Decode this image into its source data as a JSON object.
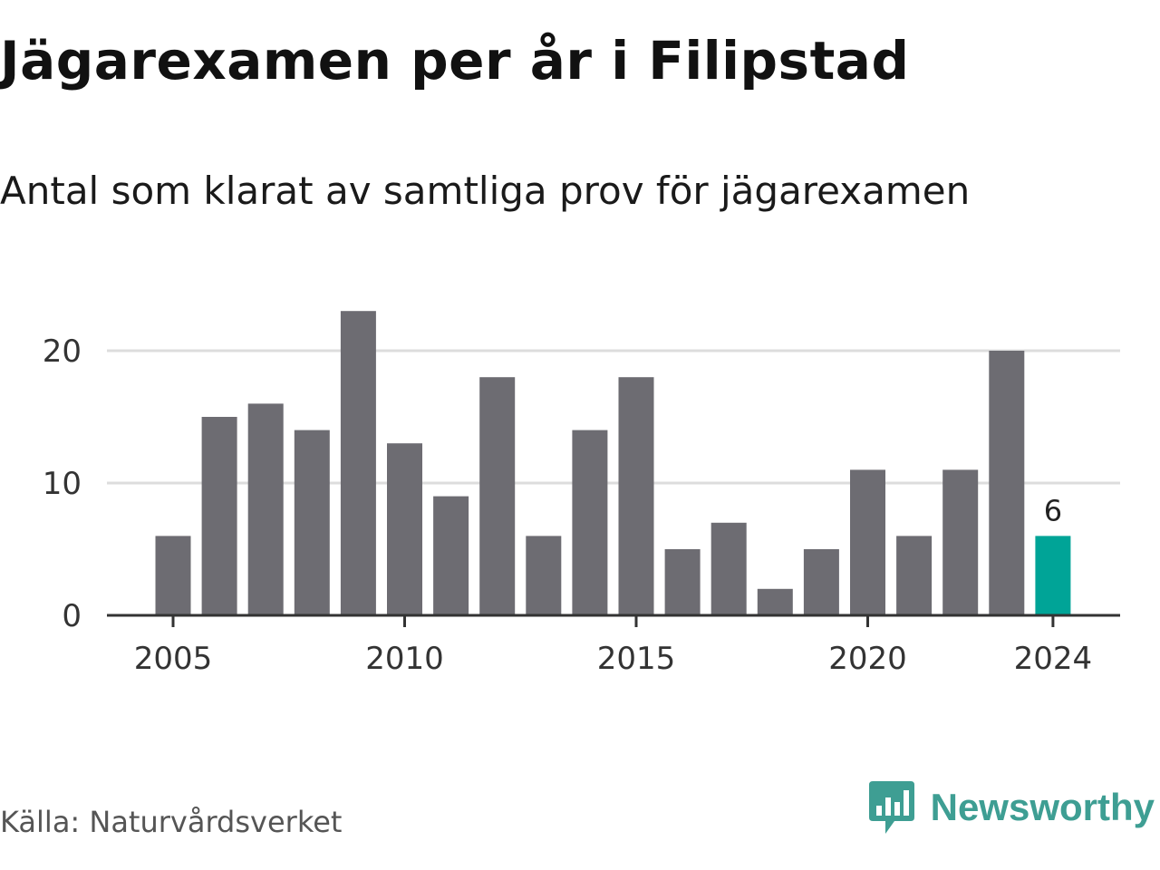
{
  "header": {
    "title": "Jägarexamen per år i Filipstad",
    "subtitle": "Antal som klarat av samtliga prov för jägarexamen"
  },
  "footer": {
    "source": "Källa: Naturvårdsverket",
    "brand": "Newsworthy",
    "brand_icon": "newsworthy-logo-icon"
  },
  "colors": {
    "bar": "#6d6c72",
    "highlight": "#00a497",
    "grid": "#dddddd",
    "axis": "#333333",
    "brand": "#3e9e93"
  },
  "chart_data": {
    "type": "bar",
    "title": "Jägarexamen per år i Filipstad",
    "subtitle": "Antal som klarat av samtliga prov för jägarexamen",
    "categories": [
      2005,
      2006,
      2007,
      2008,
      2009,
      2010,
      2011,
      2012,
      2013,
      2014,
      2015,
      2016,
      2017,
      2018,
      2019,
      2020,
      2021,
      2022,
      2023,
      2024
    ],
    "values": [
      6,
      15,
      16,
      14,
      23,
      13,
      9,
      18,
      6,
      14,
      18,
      5,
      7,
      2,
      5,
      11,
      6,
      11,
      20,
      6
    ],
    "x_ticks": [
      "2005",
      "2010",
      "2015",
      "2020",
      "2024"
    ],
    "y_ticks": [
      "0",
      "10",
      "20"
    ],
    "ylim": [
      0,
      25
    ],
    "highlight": {
      "category": 2024,
      "label": "6"
    },
    "xlabel": "",
    "ylabel": "",
    "grid": true
  }
}
